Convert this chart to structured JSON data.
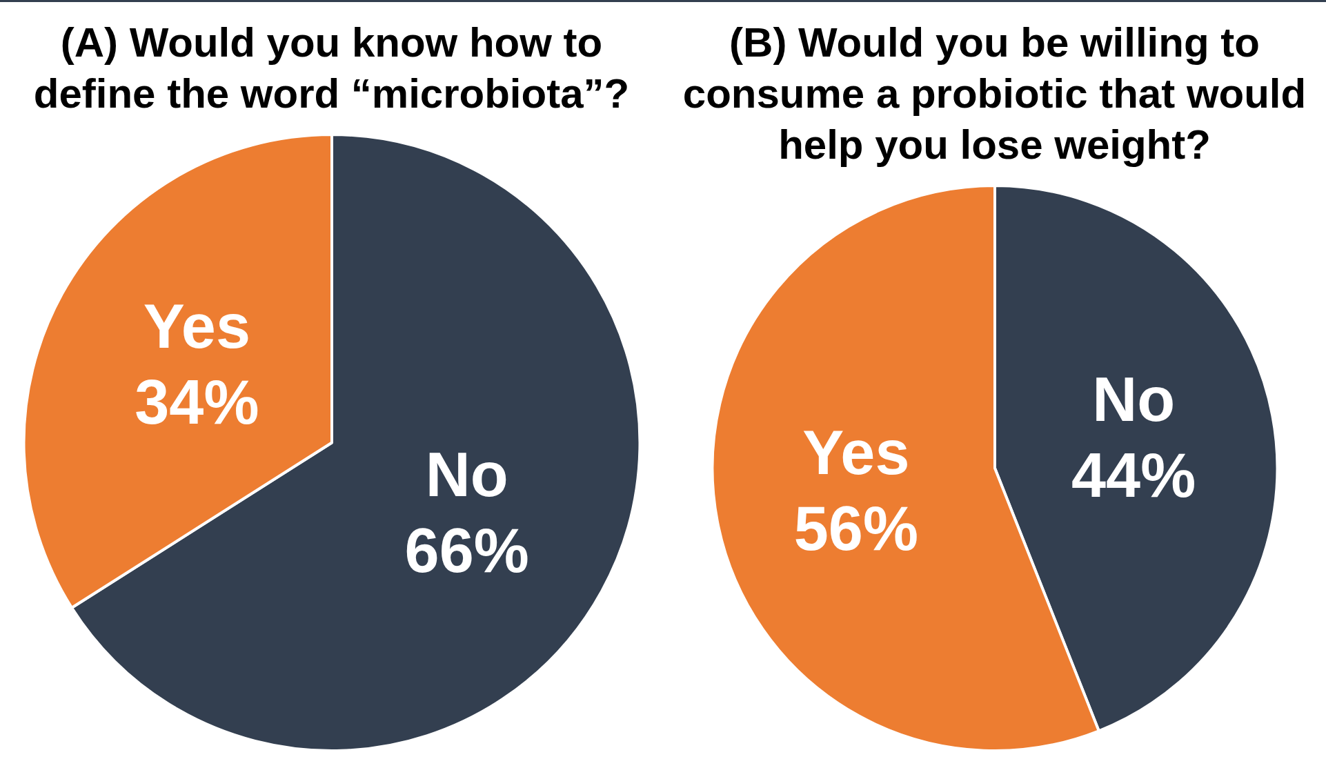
{
  "chart_data": [
    {
      "type": "pie",
      "title": "(A) Would you know how to define the word “microbiota”?",
      "categories": [
        "No",
        "Yes"
      ],
      "values": [
        66,
        34
      ],
      "colors": [
        "#333f50",
        "#ed7d31"
      ],
      "value_labels": [
        "66%",
        "34%"
      ],
      "legend": false
    },
    {
      "type": "pie",
      "title": "(B) Would you be willing to consume a probiotic that would help you lose weight?",
      "categories": [
        "No",
        "Yes"
      ],
      "values": [
        44,
        56
      ],
      "colors": [
        "#333f50",
        "#ed7d31"
      ],
      "value_labels": [
        "44%",
        "56%"
      ],
      "legend": false
    }
  ]
}
